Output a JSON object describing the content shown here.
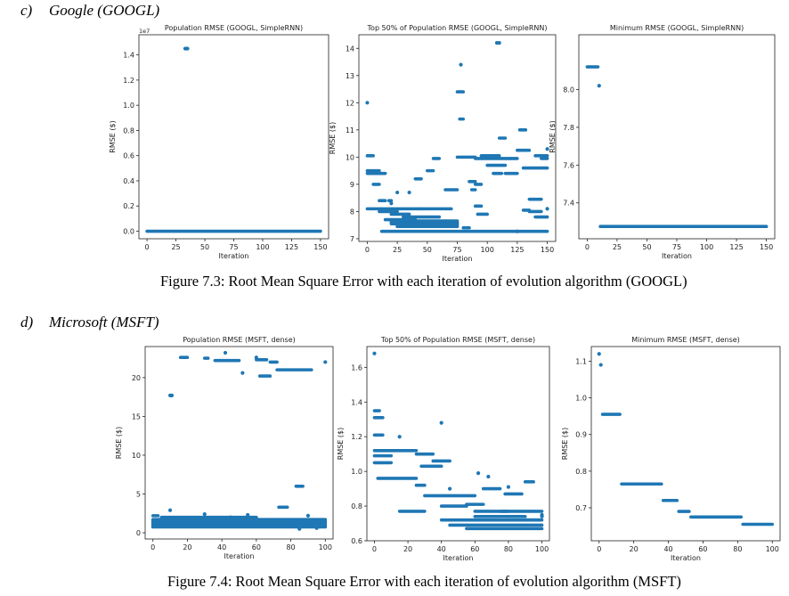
{
  "sections": [
    {
      "letter": "c)",
      "name": "Google (GOOGL)"
    },
    {
      "letter": "d)",
      "name": "Microsoft (MSFT)"
    }
  ],
  "captions": [
    "Figure 7.3: Root Mean Square Error with each iteration of evolution algorithm (GOOGL)",
    "Figure 7.4: Root Mean Square Error with each iteration of evolution algorithm (MSFT)"
  ],
  "colors": {
    "series": "#1f77b4",
    "axis": "#222222"
  },
  "chart_data": [
    {
      "type": "scatter",
      "title": "Population RMSE (GOOGL, SimpleRNN)",
      "xlabel": "Iteration",
      "ylabel": "RMSE ($)",
      "xlim": [
        -7,
        157
      ],
      "ylim": [
        -0.06,
        1.56
      ],
      "offset_text": "1e7",
      "xticks": [
        0,
        25,
        50,
        75,
        100,
        125,
        150
      ],
      "yticks": [
        0.0,
        0.2,
        0.4,
        0.6,
        0.8,
        1.0,
        1.2,
        1.4
      ],
      "ytick_labels": [
        "0.0",
        "0.2",
        "0.4",
        "0.6",
        "0.8",
        "1.0",
        "1.2",
        "1.4"
      ],
      "segments": [
        [
          0,
          150,
          0.0,
          0,
          0
        ]
      ],
      "points": [
        [
          33,
          1.45
        ],
        [
          34,
          1.45
        ],
        [
          35,
          1.45
        ]
      ]
    },
    {
      "type": "scatter",
      "title": "Top 50% of Population RMSE (GOOGL, SimpleRNN)",
      "xlabel": "Iteration",
      "ylabel": "RMSE ($)",
      "xlim": [
        -7,
        157
      ],
      "ylim": [
        6.9,
        14.5
      ],
      "xticks": [
        0,
        25,
        50,
        75,
        100,
        125,
        150
      ],
      "yticks": [
        7,
        8,
        9,
        10,
        11,
        12,
        13,
        14
      ],
      "ytick_labels": [
        "7",
        "8",
        "9",
        "10",
        "11",
        "12",
        "13",
        "14"
      ],
      "segments": [
        [
          12,
          150,
          7.27,
          0,
          0
        ],
        [
          0,
          45,
          8.1,
          0,
          0
        ],
        [
          10,
          25,
          8.0,
          0,
          0
        ],
        [
          20,
          75,
          7.6,
          0.1,
          0
        ],
        [
          25,
          75,
          7.5,
          0.1,
          0
        ],
        [
          20,
          35,
          7.9,
          0,
          0
        ],
        [
          30,
          60,
          7.8,
          0,
          0
        ],
        [
          15,
          40,
          7.7,
          0,
          0
        ],
        [
          45,
          70,
          8.1,
          0,
          0
        ],
        [
          0,
          10,
          9.5,
          0,
          0
        ],
        [
          0,
          15,
          9.4,
          0,
          0
        ],
        [
          0,
          5,
          10.05,
          0,
          0
        ],
        [
          5,
          10,
          9.0,
          0,
          0
        ],
        [
          10,
          15,
          8.4,
          0,
          0
        ],
        [
          18,
          20,
          8.4,
          0,
          0
        ],
        [
          40,
          45,
          9.2,
          0,
          0
        ],
        [
          50,
          55,
          9.5,
          0,
          0
        ],
        [
          55,
          60,
          9.95,
          0,
          0
        ],
        [
          65,
          75,
          8.8,
          0,
          0
        ],
        [
          75,
          80,
          12.4,
          0,
          0
        ],
        [
          77,
          80,
          11.4,
          0,
          0
        ],
        [
          75,
          90,
          10.0,
          0,
          0
        ],
        [
          80,
          85,
          7.4,
          0,
          0
        ],
        [
          85,
          90,
          9.1,
          0,
          0
        ],
        [
          87,
          90,
          8.8,
          0,
          0
        ],
        [
          90,
          95,
          9.0,
          0,
          0
        ],
        [
          90,
          95,
          8.2,
          0,
          0
        ],
        [
          92,
          100,
          7.9,
          0,
          0
        ],
        [
          90,
          120,
          9.95,
          0,
          0
        ],
        [
          95,
          110,
          10.05,
          0,
          0
        ],
        [
          100,
          115,
          9.7,
          0,
          0
        ],
        [
          105,
          112,
          9.4,
          0,
          0
        ],
        [
          110,
          115,
          10.7,
          0,
          0
        ],
        [
          115,
          125,
          9.4,
          0,
          0
        ],
        [
          120,
          125,
          9.95,
          0,
          0
        ],
        [
          125,
          135,
          10.25,
          0,
          0
        ],
        [
          127,
          132,
          11.0,
          0,
          0
        ],
        [
          130,
          150,
          9.6,
          0,
          0
        ],
        [
          130,
          135,
          8.05,
          0,
          0
        ],
        [
          135,
          145,
          8.45,
          0,
          0
        ],
        [
          135,
          145,
          8.0,
          0,
          0
        ],
        [
          140,
          150,
          7.8,
          0,
          0
        ],
        [
          140,
          150,
          10.05,
          0,
          0
        ],
        [
          145,
          150,
          9.95,
          0,
          0
        ]
      ],
      "points": [
        [
          0,
          12.0
        ],
        [
          78,
          13.4
        ],
        [
          108,
          14.2
        ],
        [
          110,
          14.2
        ],
        [
          20,
          8.3
        ],
        [
          25,
          8.7
        ],
        [
          35,
          8.7
        ],
        [
          125,
          7.27
        ],
        [
          150,
          10.3
        ],
        [
          150,
          8.1
        ]
      ]
    },
    {
      "type": "scatter",
      "title": "Minimum RMSE (GOOGL, SimpleRNN)",
      "xlabel": "Iteration",
      "ylabel": "RMSE ($)",
      "xlim": [
        -7,
        157
      ],
      "ylim": [
        7.21,
        8.29
      ],
      "xticks": [
        0,
        25,
        50,
        75,
        100,
        125,
        150
      ],
      "yticks": [
        7.4,
        7.6,
        7.8,
        8.0
      ],
      "ytick_labels": [
        "7.4",
        "7.6",
        "7.8",
        "8.0"
      ],
      "segments": [
        [
          0,
          9,
          8.12,
          0,
          0
        ],
        [
          11,
          150,
          7.275,
          0,
          0
        ]
      ],
      "points": [
        [
          10,
          8.02
        ]
      ]
    },
    {
      "type": "scatter",
      "title": "Population RMSE (MSFT, dense)",
      "xlabel": "Iteration",
      "ylabel": "RMSE ($)",
      "xlim": [
        -4.5,
        104.5
      ],
      "ylim": [
        -0.8,
        24.0
      ],
      "xticks": [
        0,
        20,
        40,
        60,
        80,
        100
      ],
      "yticks": [
        0,
        5,
        10,
        15,
        20
      ],
      "ytick_labels": [
        "0",
        "5",
        "10",
        "15",
        "20"
      ],
      "segments": [
        [
          0,
          100,
          1.0,
          0.2,
          0
        ],
        [
          0,
          100,
          1.3,
          0.2,
          0
        ],
        [
          0,
          100,
          1.6,
          0.2,
          0
        ],
        [
          0,
          100,
          0.8,
          0.1,
          0
        ],
        [
          5,
          60,
          1.9,
          0.2,
          0
        ],
        [
          0,
          3,
          2.2,
          0,
          0
        ],
        [
          16,
          20,
          22.6,
          0,
          0
        ],
        [
          30,
          32,
          22.5,
          0,
          0
        ],
        [
          36,
          50,
          22.2,
          0,
          0
        ],
        [
          60,
          66,
          22.3,
          0,
          0
        ],
        [
          68,
          72,
          22.0,
          0,
          0
        ],
        [
          62,
          68,
          20.2,
          0,
          0
        ],
        [
          72,
          92,
          21.0,
          0,
          0
        ],
        [
          73,
          78,
          3.3,
          0,
          0
        ],
        [
          83,
          87,
          6.0,
          0,
          0
        ]
      ],
      "points": [
        [
          10,
          17.7
        ],
        [
          11,
          17.7
        ],
        [
          42,
          23.2
        ],
        [
          52,
          20.6
        ],
        [
          60,
          22.6
        ],
        [
          100,
          22.0
        ],
        [
          10,
          2.9
        ],
        [
          30,
          2.4
        ],
        [
          55,
          2.3
        ],
        [
          90,
          2.2
        ],
        [
          45,
          2.0
        ],
        [
          85,
          0.5
        ],
        [
          95,
          0.6
        ]
      ]
    },
    {
      "type": "scatter",
      "title": "Top 50% of Population RMSE (MSFT, dense)",
      "xlabel": "Iteration",
      "ylabel": "RMSE ($)",
      "xlim": [
        -4.5,
        104.5
      ],
      "ylim": [
        0.6,
        1.72
      ],
      "xticks": [
        0,
        20,
        40,
        60,
        80,
        100
      ],
      "yticks": [
        0.6,
        0.8,
        1.0,
        1.2,
        1.4,
        1.6
      ],
      "ytick_labels": [
        "0.6",
        "0.8",
        "1.0",
        "1.2",
        "1.4",
        "1.6"
      ],
      "segments": [
        [
          0,
          3,
          1.35,
          0,
          0
        ],
        [
          0,
          5,
          1.31,
          0,
          0
        ],
        [
          0,
          5,
          1.21,
          0,
          0
        ],
        [
          0,
          25,
          1.12,
          0,
          0
        ],
        [
          0,
          10,
          1.09,
          0,
          0
        ],
        [
          0,
          10,
          1.05,
          0,
          0
        ],
        [
          2,
          25,
          0.96,
          0,
          0
        ],
        [
          25,
          35,
          1.1,
          0,
          0
        ],
        [
          28,
          40,
          1.03,
          0,
          0
        ],
        [
          35,
          45,
          1.06,
          0,
          0
        ],
        [
          25,
          30,
          0.92,
          0,
          0
        ],
        [
          15,
          30,
          0.77,
          0,
          0
        ],
        [
          30,
          60,
          0.86,
          0,
          0
        ],
        [
          40,
          55,
          0.8,
          0,
          0
        ],
        [
          40,
          100,
          0.72,
          0,
          0
        ],
        [
          45,
          100,
          0.69,
          0,
          0
        ],
        [
          55,
          100,
          0.67,
          0,
          0
        ],
        [
          60,
          80,
          0.77,
          0,
          0
        ],
        [
          75,
          95,
          0.77,
          0,
          0
        ],
        [
          60,
          90,
          0.74,
          0,
          0
        ],
        [
          55,
          65,
          0.81,
          0,
          0
        ],
        [
          65,
          75,
          0.9,
          0,
          0
        ],
        [
          78,
          88,
          0.87,
          0,
          0
        ],
        [
          90,
          95,
          0.94,
          0,
          0
        ],
        [
          90,
          98,
          0.72,
          0,
          0
        ],
        [
          95,
          100,
          0.77,
          0,
          0
        ]
      ],
      "points": [
        [
          0,
          1.68
        ],
        [
          15,
          1.2
        ],
        [
          40,
          1.28
        ],
        [
          45,
          0.9
        ],
        [
          62,
          0.99
        ],
        [
          68,
          0.97
        ],
        [
          80,
          0.91
        ],
        [
          100,
          0.75
        ],
        [
          100,
          0.74
        ]
      ]
    },
    {
      "type": "scatter",
      "title": "Minimum RMSE (MSFT, dense)",
      "xlabel": "Iteration",
      "ylabel": "RMSE ($)",
      "xlim": [
        -4.5,
        104.5
      ],
      "ylim": [
        0.61,
        1.14
      ],
      "xticks": [
        0,
        20,
        40,
        60,
        80,
        100
      ],
      "yticks": [
        0.7,
        0.8,
        0.9,
        1.0,
        1.1
      ],
      "ytick_labels": [
        "0.7",
        "0.8",
        "0.9",
        "1.0",
        "1.1"
      ],
      "segments": [
        [
          2,
          12,
          0.955,
          0,
          0
        ],
        [
          13,
          36,
          0.765,
          0,
          0
        ],
        [
          37,
          45,
          0.72,
          0,
          0
        ],
        [
          46,
          52,
          0.69,
          0,
          0
        ],
        [
          53,
          82,
          0.675,
          0,
          0
        ],
        [
          83,
          100,
          0.655,
          0,
          0
        ]
      ],
      "points": [
        [
          0,
          1.12
        ],
        [
          1,
          1.09
        ]
      ]
    }
  ]
}
